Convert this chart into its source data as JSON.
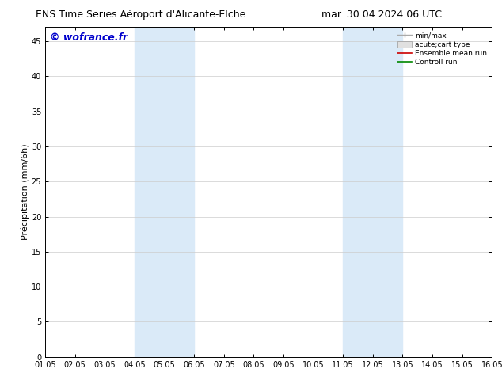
{
  "title_left": "ENS Time Series Aéroport d'Alicante-Elche",
  "title_right": "mar. 30.04.2024 06 UTC",
  "ylabel": "Précipitation (mm/6h)",
  "watermark": "© wofrance.fr",
  "xticklabels": [
    "01.05",
    "02.05",
    "03.05",
    "04.05",
    "05.05",
    "06.05",
    "07.05",
    "08.05",
    "09.05",
    "10.05",
    "11.05",
    "12.05",
    "13.05",
    "14.05",
    "15.05",
    "16.05"
  ],
  "yticks": [
    0,
    5,
    10,
    15,
    20,
    25,
    30,
    35,
    40,
    45
  ],
  "ylim": [
    0,
    47
  ],
  "xlim": [
    0,
    15
  ],
  "shade_regions": [
    [
      3,
      4
    ],
    [
      4,
      5
    ],
    [
      10,
      11
    ],
    [
      11,
      12
    ]
  ],
  "shade_color": "#daeaf8",
  "legend_labels": [
    "min/max",
    "acute;cart type",
    "Ensemble mean run",
    "Controll run"
  ],
  "legend_colors_line": [
    "#aaaaaa",
    "#cccccc",
    "#cc0000",
    "#008800"
  ],
  "background_color": "#ffffff",
  "title_fontsize": 9,
  "axis_fontsize": 7,
  "ylabel_fontsize": 8,
  "watermark_color": "#0000cc",
  "watermark_fontsize": 9,
  "spine_color": "#000000",
  "grid_color": "#cccccc"
}
